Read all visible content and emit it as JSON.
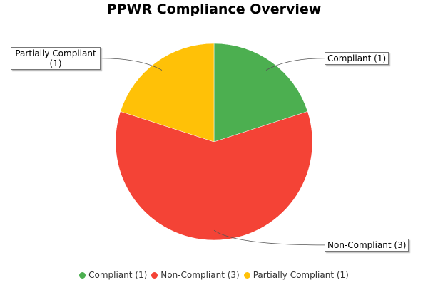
{
  "chart_data": {
    "type": "pie",
    "title": "PPWR Compliance Overview",
    "categories": [
      "Compliant (1)",
      "Non-Compliant (3)",
      "Partially Compliant (1)"
    ],
    "values": [
      1,
      3,
      1
    ],
    "colors": [
      "#4caf50",
      "#f44336",
      "#ffc107"
    ]
  }
}
